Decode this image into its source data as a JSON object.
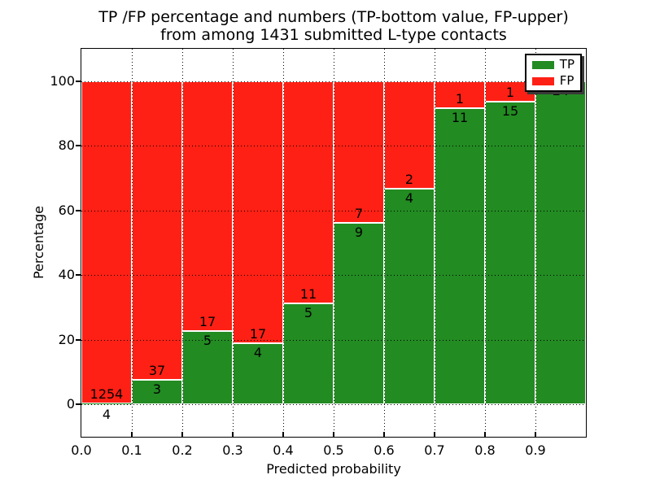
{
  "chart_data": {
    "type": "bar",
    "stacked": true,
    "normalization": "each bar totals 100 percent of its bin",
    "title_line1": "TP /FP percentage and numbers (TP-bottom value, FP-upper)",
    "title_line2": "from among 1431 submitted L-type contacts",
    "xlabel": "Predicted probability",
    "ylabel": "Percentage",
    "total_contacts": 1431,
    "categories": [
      "0.0-0.1",
      "0.1-0.2",
      "0.2-0.3",
      "0.3-0.4",
      "0.4-0.5",
      "0.5-0.6",
      "0.6-0.7",
      "0.7-0.8",
      "0.8-0.9",
      "0.9-1.0"
    ],
    "series": [
      {
        "name": "TP",
        "color": "#228b22",
        "counts": [
          4,
          3,
          5,
          4,
          5,
          9,
          4,
          11,
          15,
          24
        ]
      },
      {
        "name": "FP",
        "color": "#ff2015",
        "counts": [
          1254,
          37,
          17,
          17,
          11,
          7,
          2,
          1,
          1,
          0
        ]
      }
    ],
    "tp_percent": [
      0.32,
      7.5,
      22.73,
      19.05,
      31.25,
      56.25,
      66.67,
      91.67,
      93.75,
      100.0
    ],
    "xticks": [
      "0.0",
      "0.1",
      "0.2",
      "0.3",
      "0.4",
      "0.5",
      "0.6",
      "0.7",
      "0.8",
      "0.9"
    ],
    "yticks": [
      "0",
      "20",
      "40",
      "60",
      "80",
      "100"
    ],
    "xlim": [
      0.0,
      1.0
    ],
    "ylim": [
      -10,
      110
    ],
    "grid": "dotted, drawn over bars",
    "bar_edge_color": "#ffffff",
    "legend": {
      "position": "upper right",
      "entries": [
        {
          "label": "TP",
          "color": "#228b22"
        },
        {
          "label": "FP",
          "color": "#ff2015"
        }
      ]
    }
  }
}
